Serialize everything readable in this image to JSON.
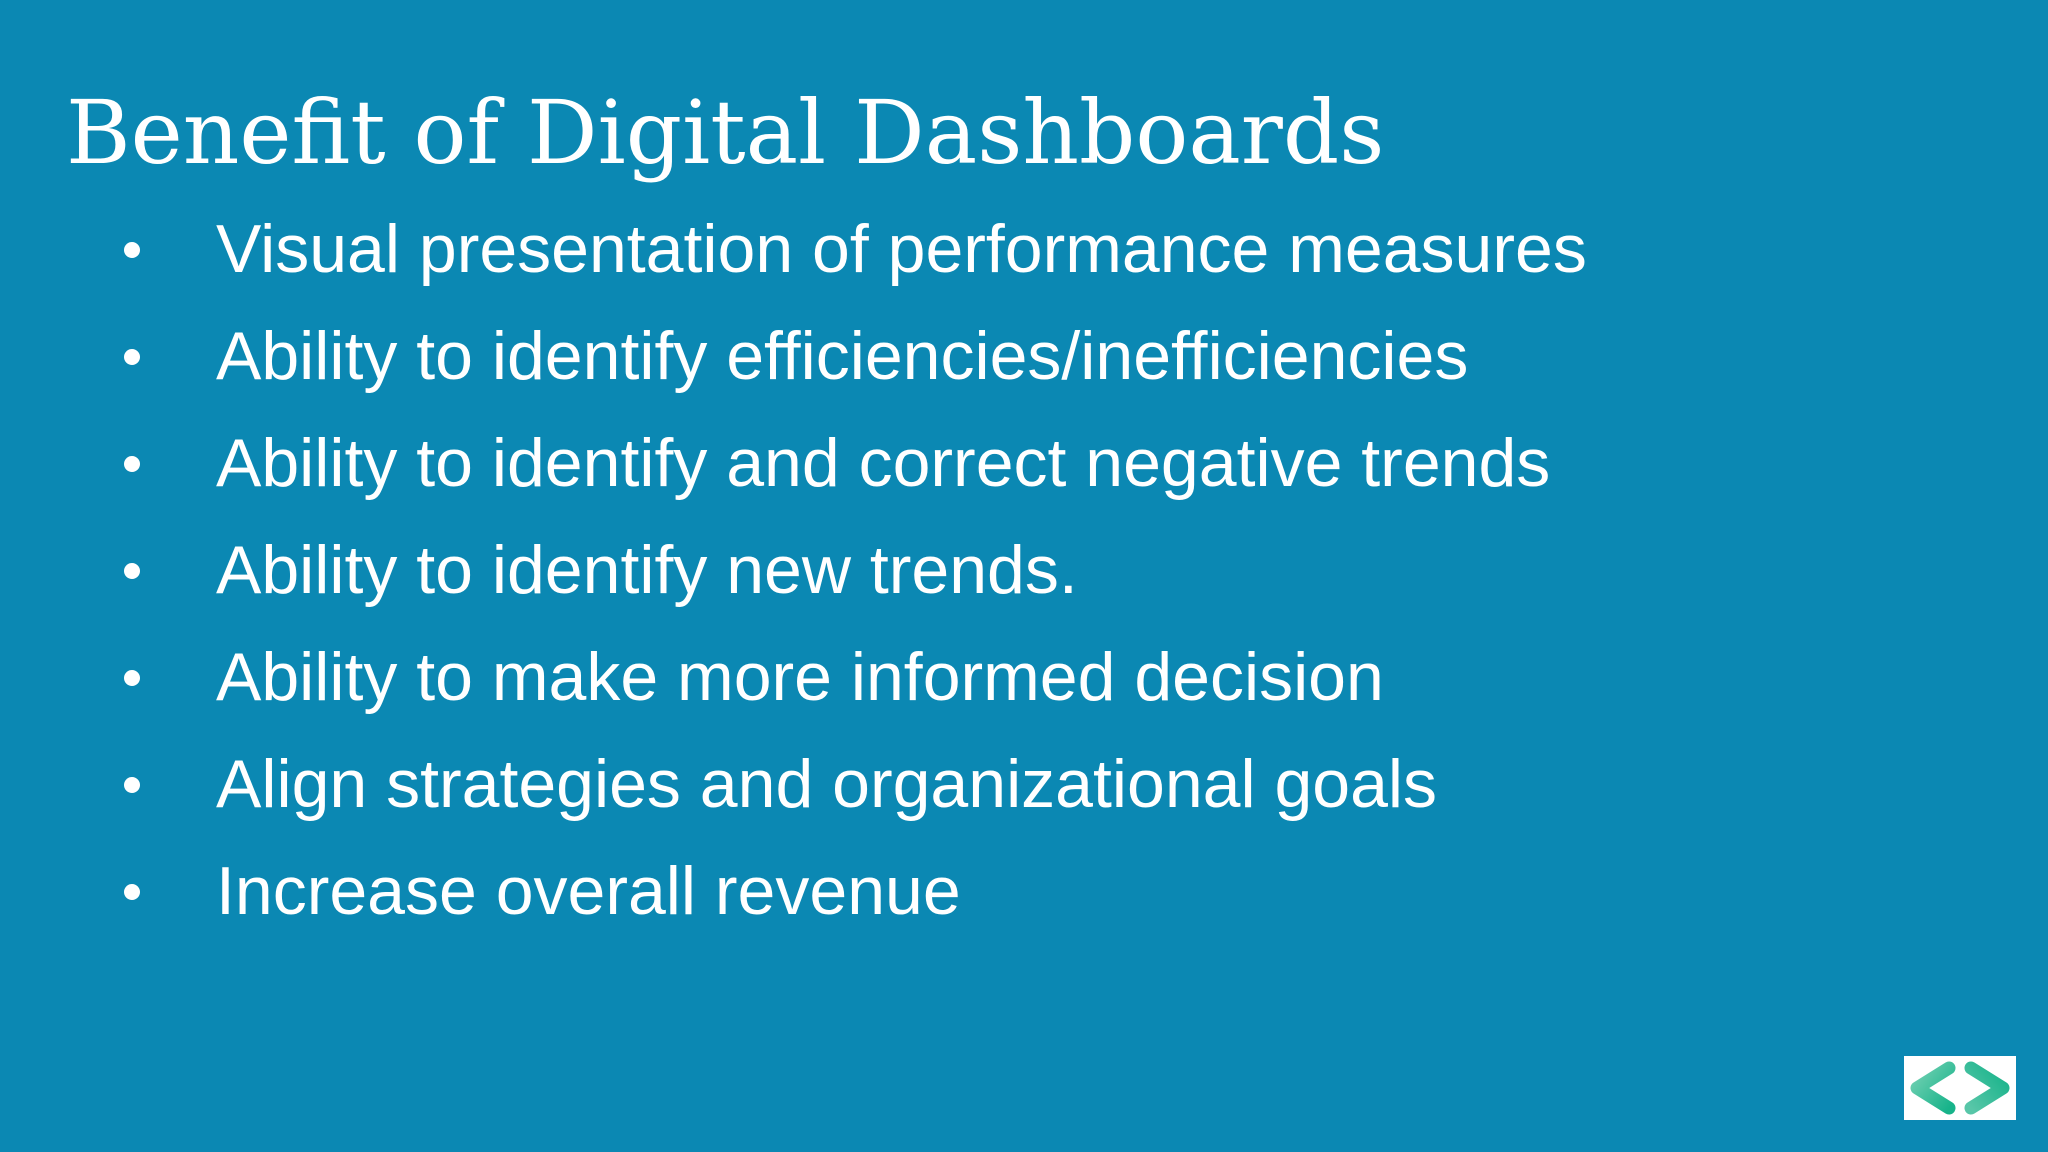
{
  "slide": {
    "title": "Benefit of Digital Dashboards",
    "bullets": [
      "Visual presentation of performance measures",
      "Ability to identify efficiencies/inefficiencies",
      "Ability to identify and correct negative trends",
      "Ability to identify new trends.",
      "Ability to make more informed decision",
      "Align strategies and organizational goals",
      "Increase overall revenue"
    ]
  },
  "logo": {
    "icon": "angle-brackets-logo-icon",
    "colors": {
      "primary": "#17b38a",
      "secondary": "#58c6a8",
      "background": "#ffffff"
    }
  },
  "theme": {
    "background": "#0b88b3",
    "text": "#ffffff"
  }
}
